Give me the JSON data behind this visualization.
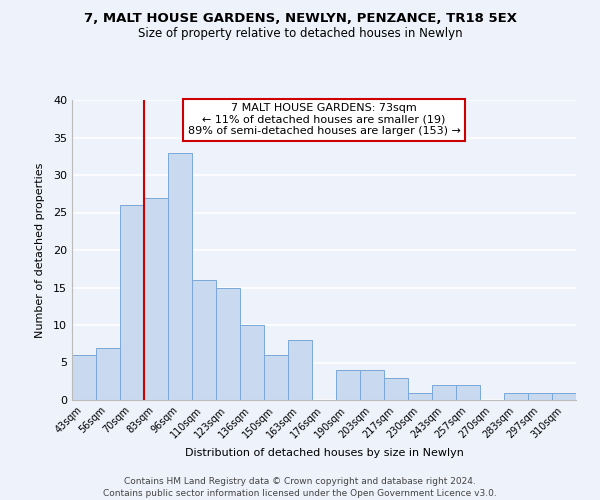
{
  "title": "7, MALT HOUSE GARDENS, NEWLYN, PENZANCE, TR18 5EX",
  "subtitle": "Size of property relative to detached houses in Newlyn",
  "xlabel": "Distribution of detached houses by size in Newlyn",
  "ylabel": "Number of detached properties",
  "bar_labels": [
    "43sqm",
    "56sqm",
    "70sqm",
    "83sqm",
    "96sqm",
    "110sqm",
    "123sqm",
    "136sqm",
    "150sqm",
    "163sqm",
    "176sqm",
    "190sqm",
    "203sqm",
    "217sqm",
    "230sqm",
    "243sqm",
    "257sqm",
    "270sqm",
    "283sqm",
    "297sqm",
    "310sqm"
  ],
  "bar_values": [
    6,
    7,
    26,
    27,
    33,
    16,
    15,
    10,
    6,
    8,
    0,
    4,
    4,
    3,
    1,
    2,
    2,
    0,
    1,
    1,
    1
  ],
  "bar_color": "#c9d9f0",
  "bar_edge_color": "#7aa8d8",
  "ylim": [
    0,
    40
  ],
  "yticks": [
    0,
    5,
    10,
    15,
    20,
    25,
    30,
    35,
    40
  ],
  "vline_x": 2.5,
  "vline_color": "#cc0000",
  "annotation_line0": "7 MALT HOUSE GARDENS: 73sqm",
  "annotation_line1": "← 11% of detached houses are smaller (19)",
  "annotation_line2": "89% of semi-detached houses are larger (153) →",
  "annotation_box_color": "#ffffff",
  "annotation_box_edge": "#cc0000",
  "footer1": "Contains HM Land Registry data © Crown copyright and database right 2024.",
  "footer2": "Contains public sector information licensed under the Open Government Licence v3.0.",
  "background_color": "#eef2fa",
  "grid_color": "#ffffff"
}
